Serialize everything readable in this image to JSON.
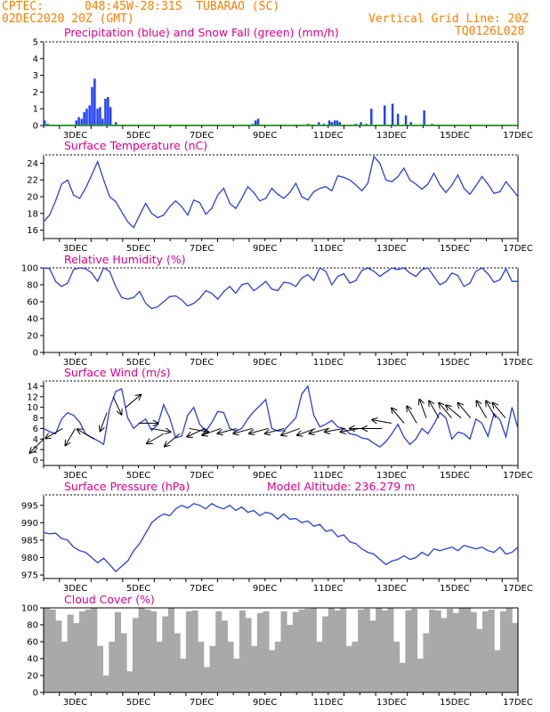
{
  "header": {
    "source": "CPTEC:",
    "location": "048:45W-28:31S  TUBARAO (SC)",
    "date": "02DEC2020 20Z (GMT)",
    "grid_note": "Vertical Grid Line: 20Z",
    "code": "TQ0126L028"
  },
  "panel_titles": {
    "precip": "Precipitation (blue) and Snow Fall (green) (mm/h)",
    "temp": "Surface Temperature (nC)",
    "rh": "Relative Humidity (%)",
    "wind": "Surface Wind (m/s)",
    "pres": "Surface Pressure (hPa)",
    "altitude": "Model Altitude: 236.279 m",
    "cloud": "Cloud Cover (%)"
  },
  "chart_data": [
    {
      "type": "bar",
      "id": "precip",
      "ylim": [
        0,
        5
      ],
      "yticks": [
        0,
        1,
        2,
        3,
        4,
        5
      ],
      "x_labels": [
        "3DEC",
        "5DEC",
        "7DEC",
        "9DEC",
        "11DEC",
        "13DEC",
        "15DEC",
        "17DEC"
      ],
      "series": [
        {
          "color": "#1f3fff",
          "points": [
            [
              0.0,
              0.3
            ],
            [
              0.09,
              0.1
            ],
            [
              1.0,
              0.3
            ],
            [
              1.08,
              0.5
            ],
            [
              1.17,
              0.4
            ],
            [
              1.25,
              0.8
            ],
            [
              1.33,
              1.0
            ],
            [
              1.42,
              1.2
            ],
            [
              1.5,
              2.3
            ],
            [
              1.58,
              2.8
            ],
            [
              1.67,
              1.0
            ],
            [
              1.75,
              1.1
            ],
            [
              1.83,
              0.4
            ],
            [
              1.92,
              1.6
            ],
            [
              2.0,
              1.7
            ],
            [
              2.08,
              1.1
            ],
            [
              2.25,
              0.2
            ],
            [
              6.58,
              0.1
            ],
            [
              6.67,
              0.3
            ],
            [
              6.75,
              0.4
            ],
            [
              8.33,
              0.1
            ],
            [
              8.67,
              0.2
            ],
            [
              8.83,
              0.1
            ],
            [
              9.0,
              0.3
            ],
            [
              9.08,
              0.2
            ],
            [
              9.17,
              0.3
            ],
            [
              9.25,
              0.3
            ],
            [
              9.33,
              0.2
            ],
            [
              9.83,
              0.1
            ],
            [
              10.0,
              0.2
            ],
            [
              10.17,
              0.1
            ],
            [
              10.33,
              1.0
            ],
            [
              10.75,
              1.2
            ],
            [
              11.0,
              1.3
            ],
            [
              11.17,
              0.7
            ],
            [
              11.42,
              0.6
            ],
            [
              11.58,
              0.2
            ],
            [
              12.0,
              0.9
            ],
            [
              12.25,
              0.1
            ]
          ]
        },
        {
          "color": "#00b400",
          "points": []
        }
      ]
    },
    {
      "type": "line",
      "id": "temp",
      "ylim": [
        15,
        25
      ],
      "yticks": [
        16,
        18,
        20,
        22,
        24
      ],
      "x_labels": [
        "3DEC",
        "5DEC",
        "7DEC",
        "9DEC",
        "11DEC",
        "13DEC",
        "15DEC",
        "17DEC"
      ],
      "series": [
        {
          "color": "#2a3fd9",
          "values": [
            17.0,
            17.8,
            19.5,
            21.5,
            22.0,
            20.2,
            19.8,
            21.0,
            22.6,
            24.2,
            22.0,
            20.0,
            19.4,
            18.2,
            17.0,
            16.3,
            17.8,
            19.2,
            18.0,
            17.5,
            17.8,
            18.8,
            19.5,
            18.8,
            17.8,
            19.6,
            19.3,
            17.9,
            18.6,
            20.2,
            21.0,
            19.2,
            18.6,
            19.8,
            21.2,
            20.5,
            19.5,
            19.8,
            21.0,
            20.3,
            19.8,
            20.5,
            21.6,
            20.0,
            19.6,
            20.6,
            21.0,
            21.2,
            20.7,
            22.5,
            22.3,
            22.0,
            21.4,
            20.7,
            21.6,
            24.8,
            24.0,
            22.0,
            21.8,
            22.4,
            23.4,
            22.0,
            21.5,
            20.9,
            21.5,
            22.8,
            21.4,
            20.5,
            21.4,
            22.6,
            21.0,
            20.3,
            21.3,
            22.4,
            21.5,
            20.4,
            20.6,
            21.8,
            20.9,
            20.0
          ]
        }
      ]
    },
    {
      "type": "line",
      "id": "rh",
      "ylim": [
        0,
        100
      ],
      "yticks": [
        0,
        20,
        40,
        60,
        80,
        100
      ],
      "x_labels": [
        "3DEC",
        "5DEC",
        "7DEC",
        "9DEC",
        "11DEC",
        "13DEC",
        "15DEC",
        "17DEC"
      ],
      "series": [
        {
          "color": "#2a3fd9",
          "values": [
            100,
            99,
            84,
            78,
            82,
            98,
            100,
            99,
            94,
            84,
            100,
            96,
            78,
            65,
            63,
            65,
            72,
            58,
            52,
            54,
            60,
            66,
            67,
            62,
            55,
            58,
            64,
            73,
            70,
            63,
            72,
            78,
            70,
            80,
            82,
            73,
            78,
            84,
            75,
            73,
            83,
            82,
            78,
            88,
            92,
            85,
            100,
            96,
            80,
            90,
            93,
            82,
            85,
            97,
            100,
            96,
            90,
            95,
            100,
            98,
            100,
            94,
            90,
            98,
            100,
            90,
            80,
            84,
            94,
            91,
            78,
            82,
            96,
            100,
            93,
            83,
            86,
            99,
            84,
            84
          ]
        }
      ]
    },
    {
      "type": "line",
      "id": "wind",
      "ylim": [
        -1,
        15
      ],
      "yticks": [
        0,
        2,
        4,
        6,
        8,
        10,
        12,
        14
      ],
      "x_labels": [
        "3DEC",
        "5DEC",
        "7DEC",
        "9DEC",
        "11DEC",
        "13DEC",
        "15DEC",
        "17DEC"
      ],
      "series": [
        {
          "color": "#2a3fd9",
          "values": [
            6.0,
            5.4,
            5.0,
            7.8,
            9.0,
            8.5,
            7.2,
            5.0,
            4.3,
            3.7,
            3.0,
            9.8,
            13.0,
            13.5,
            8.0,
            6.0,
            7.0,
            7.8,
            5.6,
            6.7,
            10.5,
            8.0,
            4.2,
            4.6,
            8.5,
            10.0,
            6.8,
            5.5,
            7.1,
            9.2,
            9.0,
            6.0,
            5.5,
            6.0,
            7.8,
            9.2,
            10.3,
            11.5,
            6.0,
            5.5,
            5.6,
            6.8,
            8.0,
            12.5,
            14.0,
            8.5,
            6.3,
            6.8,
            7.5,
            6.3,
            6.0,
            5.0,
            4.8,
            4.2,
            4.0,
            3.2,
            2.5,
            3.5,
            5.0,
            6.8,
            4.4,
            3.0,
            4.0,
            6.0,
            5.0,
            6.8,
            9.0,
            8.0,
            4.0,
            5.3,
            5.0,
            4.0,
            7.8,
            7.0,
            4.5,
            8.8,
            7.6,
            4.4,
            10.0,
            6.0
          ]
        }
      ],
      "vectors": [
        [
          0.0,
          4,
          225
        ],
        [
          0.6,
          6,
          240
        ],
        [
          1.0,
          6,
          210
        ],
        [
          1.6,
          4,
          300
        ],
        [
          2.0,
          9,
          200
        ],
        [
          2.2,
          12,
          155
        ],
        [
          2.6,
          10,
          50
        ],
        [
          3.0,
          7,
          90
        ],
        [
          3.4,
          6,
          100
        ],
        [
          3.8,
          5,
          240
        ],
        [
          4.3,
          5,
          230
        ],
        [
          4.6,
          6,
          100
        ],
        [
          5.1,
          6,
          245
        ],
        [
          5.6,
          6,
          250
        ],
        [
          6.1,
          6,
          255
        ],
        [
          6.6,
          6,
          255
        ],
        [
          7.1,
          6,
          255
        ],
        [
          7.6,
          6,
          255
        ],
        [
          8.1,
          6,
          250
        ],
        [
          8.6,
          6,
          250
        ],
        [
          9.0,
          6,
          255
        ],
        [
          9.5,
          6,
          260
        ],
        [
          10.0,
          6,
          260
        ],
        [
          10.3,
          6,
          270
        ],
        [
          10.7,
          6,
          270
        ],
        [
          11.0,
          7,
          280
        ],
        [
          11.4,
          7,
          320
        ],
        [
          11.8,
          7,
          330
        ],
        [
          12.1,
          8,
          340
        ],
        [
          12.5,
          8,
          330
        ],
        [
          12.9,
          8,
          320
        ],
        [
          13.2,
          8,
          310
        ],
        [
          13.5,
          8,
          320
        ],
        [
          14.0,
          8,
          330
        ],
        [
          14.3,
          8,
          330
        ],
        [
          14.6,
          8,
          320
        ]
      ]
    },
    {
      "type": "line",
      "id": "pres",
      "ylim": [
        974,
        998
      ],
      "yticks": [
        975,
        980,
        985,
        990,
        995
      ],
      "x_labels": [
        "3DEC",
        "5DEC",
        "7DEC",
        "9DEC",
        "11DEC",
        "13DEC",
        "15DEC",
        "17DEC"
      ],
      "series": [
        {
          "color": "#2a3fd9",
          "values": [
            987.2,
            986.8,
            987.0,
            985.5,
            985.0,
            983.0,
            982.0,
            981.5,
            980.0,
            978.5,
            979.8,
            978.0,
            976.0,
            977.5,
            979.0,
            982.0,
            984.0,
            987.0,
            990.0,
            991.5,
            992.5,
            992.0,
            994.0,
            995.0,
            994.2,
            995.5,
            995.0,
            994.0,
            995.5,
            994.5,
            994.0,
            995.0,
            993.5,
            994.5,
            993.0,
            993.5,
            992.0,
            993.0,
            992.5,
            991.0,
            992.5,
            991.0,
            991.2,
            990.0,
            990.5,
            989.0,
            989.5,
            987.5,
            988.0,
            986.0,
            986.5,
            984.5,
            984.0,
            982.5,
            981.5,
            981.0,
            979.5,
            978.0,
            979.0,
            979.5,
            980.5,
            979.5,
            980.0,
            981.5,
            980.5,
            982.5,
            982.0,
            982.5,
            983.0,
            982.0,
            983.5,
            983.0,
            982.5,
            983.0,
            982.0,
            981.5,
            983.0,
            981.0,
            981.5,
            983.0
          ]
        }
      ]
    },
    {
      "type": "area",
      "id": "cloud",
      "ylim": [
        0,
        100
      ],
      "yticks": [
        0,
        20,
        40,
        60,
        80,
        100
      ],
      "x_labels": [
        "3DEC",
        "5DEC",
        "7DEC",
        "9DEC",
        "11DEC",
        "13DEC",
        "15DEC",
        "17DEC"
      ],
      "series": [
        {
          "color": "#a9a9a9",
          "values": [
            100,
            98,
            85,
            60,
            92,
            82,
            96,
            98,
            100,
            55,
            20,
            60,
            95,
            70,
            25,
            88,
            100,
            98,
            96,
            60,
            90,
            100,
            70,
            40,
            96,
            97,
            60,
            30,
            55,
            96,
            85,
            60,
            40,
            97,
            88,
            55,
            94,
            96,
            50,
            60,
            96,
            80,
            95,
            98,
            99,
            100,
            60,
            90,
            100,
            97,
            100,
            55,
            60,
            98,
            99,
            85,
            100,
            97,
            100,
            60,
            35,
            97,
            99,
            40,
            70,
            98,
            97,
            88,
            99,
            94,
            100,
            100,
            95,
            75,
            96,
            98,
            50,
            96,
            100,
            82
          ]
        }
      ]
    }
  ]
}
